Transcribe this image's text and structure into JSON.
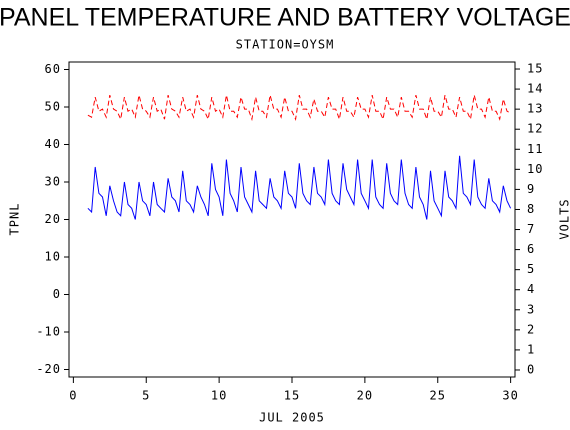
{
  "chart_data": {
    "type": "line",
    "title": "PANEL TEMPERATURE AND BATTERY VOLTAGE",
    "subtitle": "STATION=OYSM",
    "x_label": "JUL 2005",
    "y_label": "TPNL",
    "y2_label": "VOLTS",
    "xlim": [
      -0.3,
      30.3
    ],
    "xticks": [
      0,
      5,
      10,
      15,
      20,
      25,
      30
    ],
    "ylim": [
      -22,
      62
    ],
    "yticks": [
      -20,
      -10,
      0,
      10,
      20,
      30,
      40,
      50,
      60
    ],
    "y2lim": [
      -0.35,
      15.35
    ],
    "y2ticks": [
      0,
      1,
      2,
      3,
      4,
      5,
      6,
      7,
      8,
      9,
      10,
      11,
      12,
      13,
      14,
      15
    ],
    "x": [
      1,
      1.25,
      1.5,
      1.75,
      2,
      2.25,
      2.5,
      2.75,
      3,
      3.25,
      3.5,
      3.75,
      4,
      4.25,
      4.5,
      4.75,
      5,
      5.25,
      5.5,
      5.75,
      6,
      6.25,
      6.5,
      6.75,
      7,
      7.25,
      7.5,
      7.75,
      8,
      8.25,
      8.5,
      8.75,
      9,
      9.25,
      9.5,
      9.75,
      10,
      10.25,
      10.5,
      10.75,
      11,
      11.25,
      11.5,
      11.75,
      12,
      12.25,
      12.5,
      12.75,
      13,
      13.25,
      13.5,
      13.75,
      14,
      14.25,
      14.5,
      14.75,
      15,
      15.25,
      15.5,
      15.75,
      16,
      16.25,
      16.5,
      16.75,
      17,
      17.25,
      17.5,
      17.75,
      18,
      18.25,
      18.5,
      18.75,
      19,
      19.25,
      19.5,
      19.75,
      20,
      20.25,
      20.5,
      20.75,
      21,
      21.25,
      21.5,
      21.75,
      22,
      22.25,
      22.5,
      22.75,
      23,
      23.25,
      23.5,
      23.75,
      24,
      24.25,
      24.5,
      24.75,
      25,
      25.25,
      25.5,
      25.75,
      26,
      26.25,
      26.5,
      26.75,
      27,
      27.25,
      27.5,
      27.75,
      28,
      28.25,
      28.5,
      28.75,
      29,
      29.25,
      29.5,
      29.75,
      30
    ],
    "series": [
      {
        "name": "TPNL",
        "color": "#0000ff",
        "axis": "y",
        "dash": false,
        "values": [
          23,
          22,
          34,
          27,
          26,
          21,
          29,
          25,
          22,
          21,
          30,
          24,
          23,
          20,
          30,
          25,
          24,
          21,
          30,
          24,
          23,
          22,
          31,
          26,
          25,
          22,
          33,
          25,
          24,
          22,
          29,
          26,
          24,
          21,
          35,
          28,
          26,
          21,
          36,
          27,
          25,
          22,
          34,
          26,
          24,
          22,
          33,
          25,
          24,
          23,
          31,
          26,
          25,
          23,
          33,
          27,
          26,
          23,
          35,
          27,
          25,
          24,
          34,
          27,
          26,
          24,
          36,
          27,
          25,
          24,
          35,
          28,
          26,
          24,
          36,
          27,
          25,
          23,
          36,
          26,
          24,
          23,
          35,
          27,
          25,
          24,
          36,
          27,
          24,
          23,
          34,
          26,
          24,
          20,
          33,
          25,
          23,
          21,
          33,
          26,
          25,
          23,
          37,
          27,
          26,
          24,
          36,
          26,
          24,
          23,
          31,
          25,
          24,
          22,
          29,
          25,
          23
        ]
      },
      {
        "name": "VOLTS",
        "color": "#ff0000",
        "axis": "y2",
        "dash": true,
        "values": [
          12.7,
          12.6,
          13.6,
          12.9,
          13.0,
          12.6,
          13.7,
          13.0,
          12.9,
          12.5,
          13.6,
          12.9,
          13.0,
          12.6,
          13.7,
          13.0,
          12.9,
          12.6,
          13.6,
          12.9,
          13.0,
          12.5,
          13.7,
          13.0,
          12.9,
          12.6,
          13.6,
          12.9,
          13.0,
          12.6,
          13.7,
          13.0,
          12.9,
          12.5,
          13.6,
          12.9,
          13.0,
          12.6,
          13.7,
          12.9,
          12.9,
          12.6,
          13.6,
          13.0,
          13.0,
          12.5,
          13.6,
          12.9,
          12.9,
          12.6,
          13.7,
          13.0,
          13.0,
          12.6,
          13.6,
          12.9,
          12.9,
          12.5,
          13.7,
          13.0,
          13.0,
          12.6,
          13.5,
          12.9,
          12.9,
          12.6,
          13.6,
          13.0,
          13.0,
          12.5,
          13.6,
          12.9,
          12.9,
          12.6,
          13.6,
          13.0,
          13.0,
          12.6,
          13.7,
          12.9,
          12.9,
          12.5,
          13.6,
          13.0,
          13.0,
          12.6,
          13.6,
          12.9,
          12.9,
          12.6,
          13.7,
          13.0,
          13.0,
          12.5,
          13.6,
          12.9,
          12.9,
          12.6,
          13.7,
          13.0,
          13.0,
          12.6,
          13.6,
          12.9,
          12.9,
          12.5,
          13.7,
          13.0,
          13.0,
          12.6,
          13.6,
          12.9,
          12.9,
          12.5,
          13.5,
          12.9,
          12.8
        ]
      }
    ]
  }
}
